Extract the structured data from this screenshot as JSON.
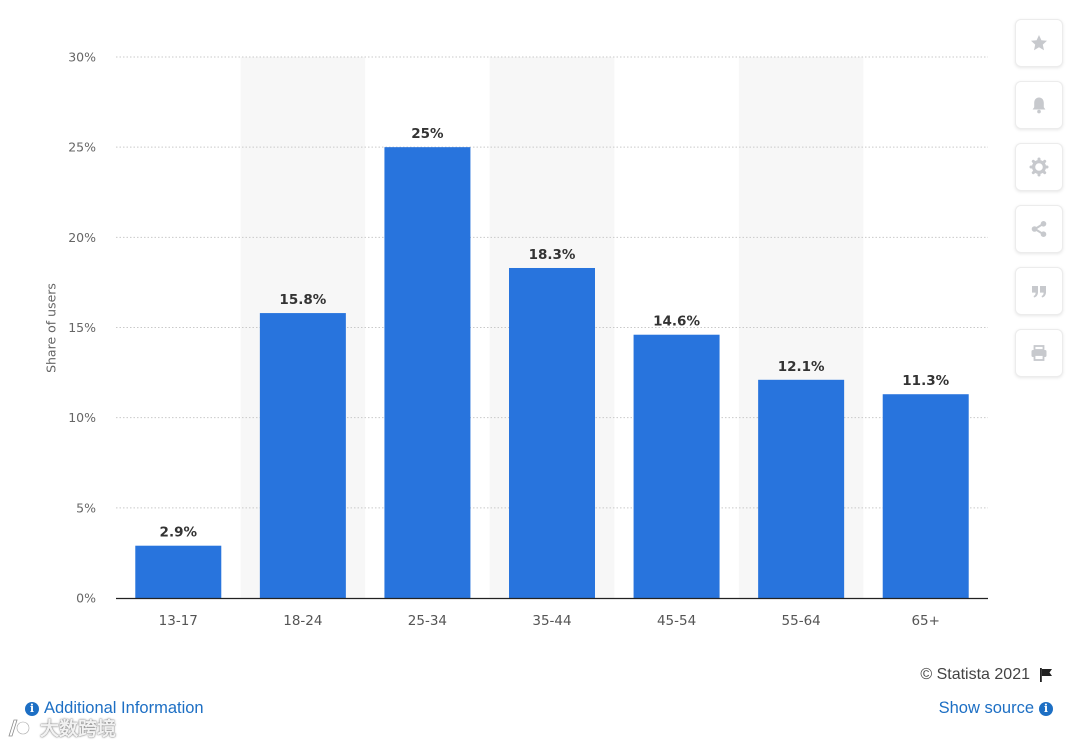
{
  "chart_data": {
    "type": "bar",
    "categories": [
      "13-17",
      "18-24",
      "25-34",
      "35-44",
      "45-54",
      "55-64",
      "65+"
    ],
    "values": [
      2.9,
      15.8,
      25,
      18.3,
      14.6,
      12.1,
      11.3
    ],
    "value_labels": [
      "2.9%",
      "15.8%",
      "25%",
      "18.3%",
      "14.6%",
      "12.1%",
      "11.3%"
    ],
    "ylabel": "Share of users",
    "ylim": [
      0,
      30
    ],
    "yticks": [
      0,
      5,
      10,
      15,
      20,
      25,
      30
    ],
    "ytick_labels": [
      "0%",
      "5%",
      "10%",
      "15%",
      "20%",
      "25%",
      "30%"
    ],
    "grid": true,
    "bar_color": "#2874dd",
    "band_color": "#f7f7f7"
  },
  "toolbar": {
    "icons": [
      "star-icon",
      "bell-icon",
      "gear-icon",
      "share-icon",
      "quote-icon",
      "print-icon"
    ]
  },
  "footer": {
    "copyright": "© Statista 2021",
    "additional_info": "Additional Information",
    "show_source": "Show source",
    "link_color": "#1d6fc4"
  },
  "watermark": {
    "text": "大数跨境"
  }
}
